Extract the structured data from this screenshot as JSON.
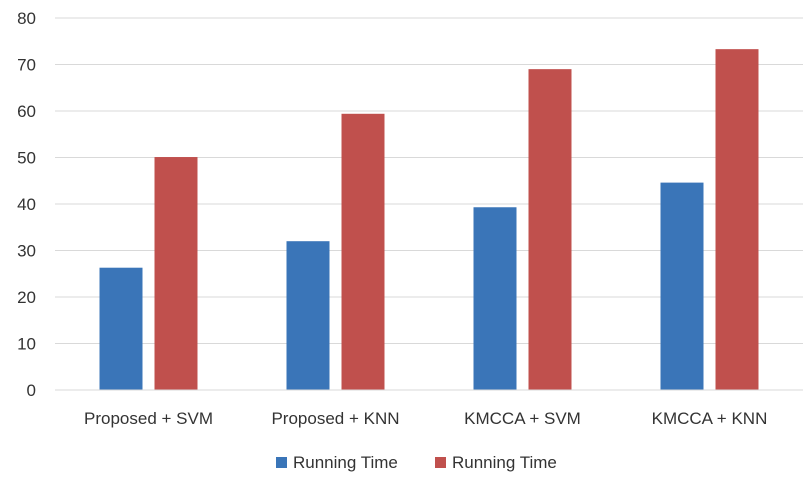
{
  "chart_data": {
    "type": "bar",
    "title": "",
    "xlabel": "",
    "ylabel": "",
    "categories": [
      "Proposed + SVM",
      "Proposed + KNN",
      "KMCCA + SVM",
      "KMCCA + KNN"
    ],
    "series": [
      {
        "name": "Running Time",
        "color": "#3a75b8",
        "values": [
          26.3,
          32.0,
          39.3,
          44.6
        ]
      },
      {
        "name": "Running Time",
        "color": "#c0504d",
        "values": [
          50.1,
          59.4,
          69.0,
          73.3
        ]
      }
    ],
    "ylim": [
      0,
      80
    ],
    "yticks": [
      "0",
      "10",
      "20",
      "30",
      "40",
      "50",
      "60",
      "70",
      "80"
    ],
    "grid": true,
    "legend_position": "bottom"
  }
}
